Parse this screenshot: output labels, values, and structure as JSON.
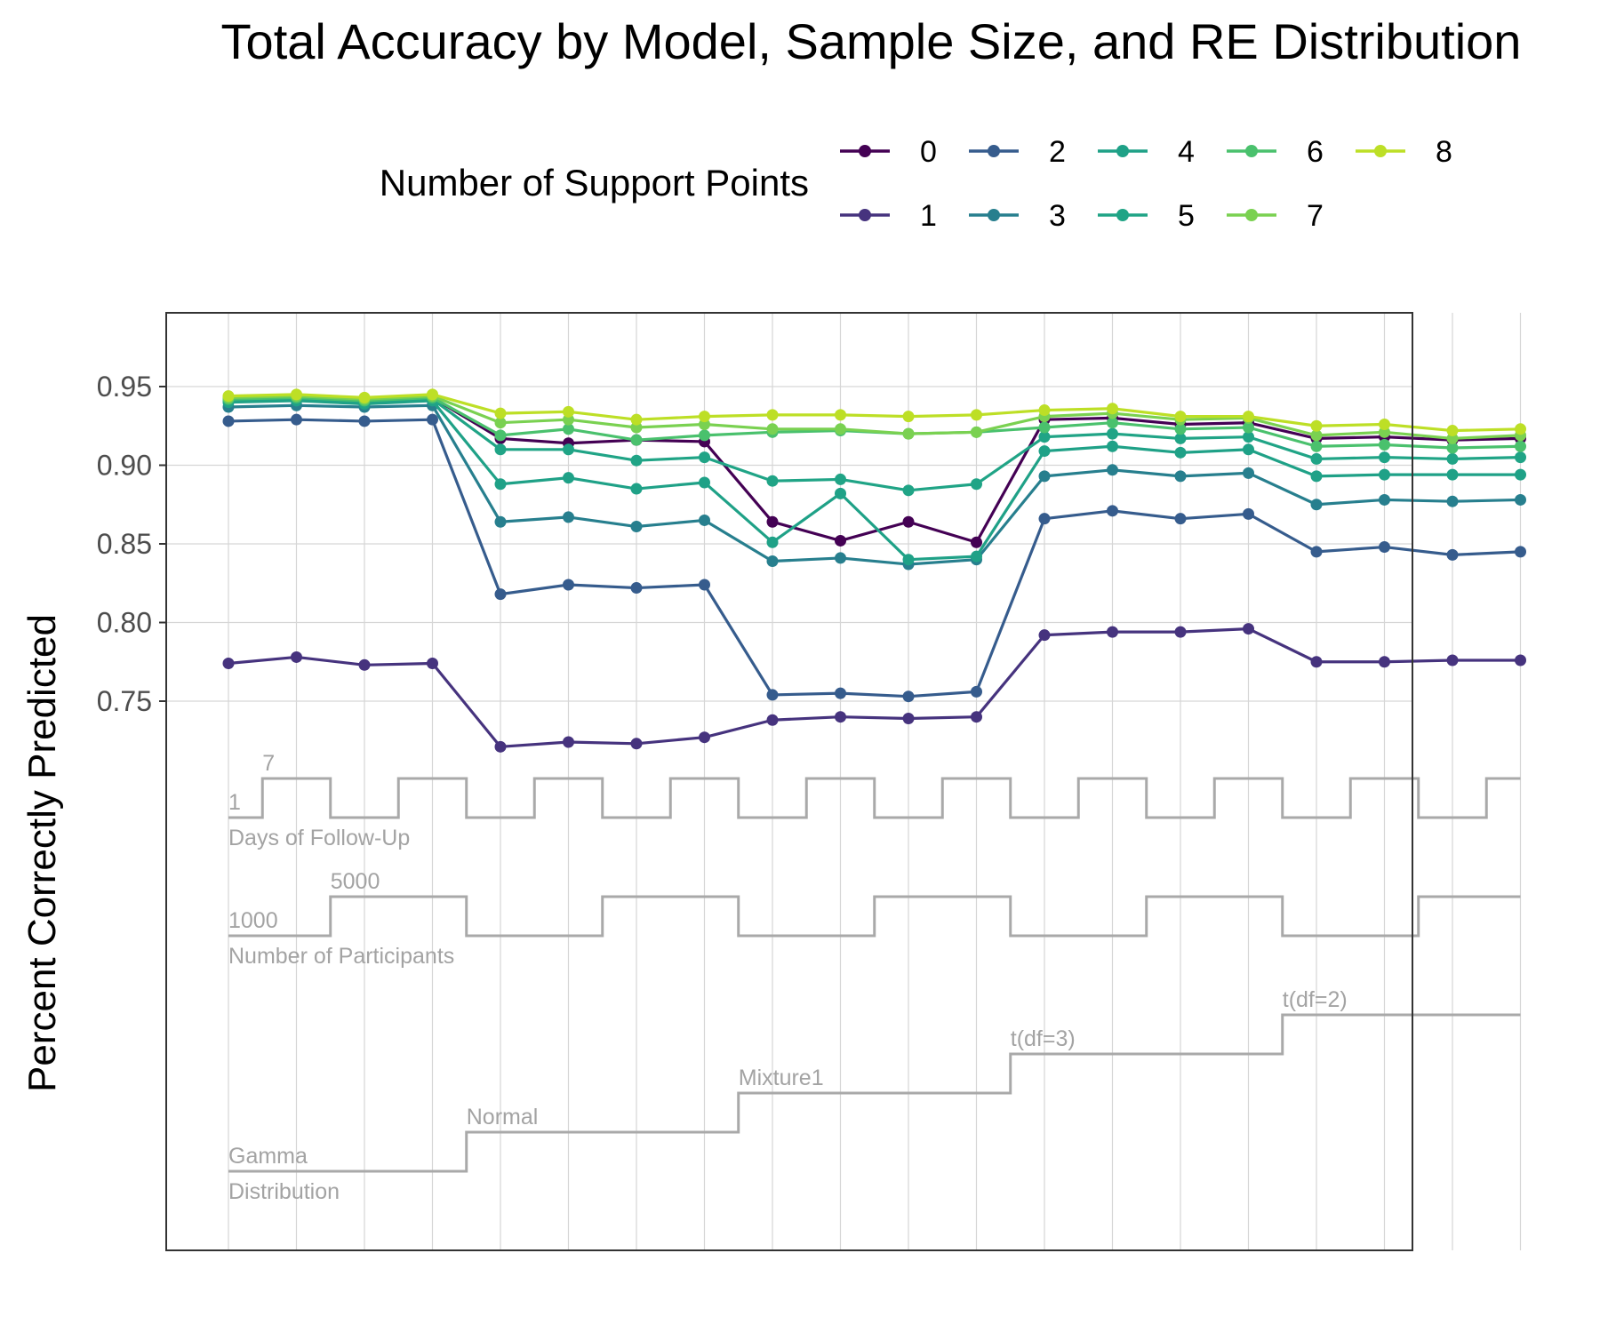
{
  "chart_data": {
    "type": "line",
    "title": "Total Accuracy by Model, Sample Size, and RE Distribution",
    "xlabel": "",
    "ylabel": "Percent Correctly Predicted",
    "legend_title": "Number of Support Points",
    "legend_position": "top",
    "grid": true,
    "yticks": [
      0.75,
      0.8,
      0.85,
      0.9,
      0.95
    ],
    "ytick_labels": [
      "0.75",
      "0.80",
      "0.85",
      "0.90",
      "0.95"
    ],
    "ylim": [
      0.5,
      0.995
    ],
    "x": [
      1,
      2,
      3,
      4,
      5,
      6,
      7,
      8,
      9,
      10,
      11,
      12,
      13,
      14,
      15,
      16,
      17,
      18,
      19,
      20
    ],
    "series": [
      {
        "name": "0",
        "color": "#440154",
        "values": [
          0.943,
          0.944,
          0.942,
          0.943,
          0.917,
          0.914,
          0.916,
          0.915,
          0.864,
          0.852,
          0.864,
          0.851,
          0.929,
          0.93,
          0.926,
          0.927,
          0.917,
          0.918,
          0.916,
          0.917
        ]
      },
      {
        "name": "1",
        "color": "#46337E",
        "values": [
          0.774,
          0.778,
          0.773,
          0.774,
          0.721,
          0.724,
          0.723,
          0.727,
          0.738,
          0.74,
          0.739,
          0.74,
          0.792,
          0.794,
          0.794,
          0.796,
          0.775,
          0.775,
          0.776,
          0.776
        ]
      },
      {
        "name": "2",
        "color": "#365C8D",
        "values": [
          0.928,
          0.929,
          0.928,
          0.929,
          0.818,
          0.824,
          0.822,
          0.824,
          0.754,
          0.755,
          0.753,
          0.756,
          0.866,
          0.871,
          0.866,
          0.869,
          0.845,
          0.848,
          0.843,
          0.845
        ]
      },
      {
        "name": "3",
        "color": "#277F8E",
        "values": [
          0.937,
          0.938,
          0.937,
          0.938,
          0.864,
          0.867,
          0.861,
          0.865,
          0.839,
          0.841,
          0.837,
          0.84,
          0.893,
          0.897,
          0.893,
          0.895,
          0.875,
          0.878,
          0.877,
          0.878
        ]
      },
      {
        "name": "4",
        "color": "#1FA187",
        "values": [
          0.94,
          0.941,
          0.939,
          0.941,
          0.888,
          0.892,
          0.885,
          0.889,
          0.851,
          0.882,
          0.84,
          0.842,
          0.909,
          0.912,
          0.908,
          0.91,
          0.893,
          0.894,
          0.894,
          0.894
        ]
      },
      {
        "name": "5",
        "color": "#20A486",
        "values": [
          0.941,
          0.942,
          0.94,
          0.942,
          0.91,
          0.91,
          0.903,
          0.905,
          0.89,
          0.891,
          0.884,
          0.888,
          0.918,
          0.92,
          0.917,
          0.918,
          0.904,
          0.905,
          0.904,
          0.905
        ]
      },
      {
        "name": "6",
        "color": "#4AC16D",
        "values": [
          0.942,
          0.943,
          0.941,
          0.943,
          0.919,
          0.923,
          0.916,
          0.919,
          0.921,
          0.922,
          0.92,
          0.921,
          0.924,
          0.927,
          0.923,
          0.924,
          0.912,
          0.913,
          0.911,
          0.912
        ]
      },
      {
        "name": "7",
        "color": "#7AD151",
        "values": [
          0.943,
          0.944,
          0.942,
          0.944,
          0.927,
          0.929,
          0.924,
          0.926,
          0.923,
          0.923,
          0.92,
          0.921,
          0.931,
          0.933,
          0.929,
          0.93,
          0.919,
          0.921,
          0.917,
          0.919
        ]
      },
      {
        "name": "8",
        "color": "#BDDF26",
        "values": [
          0.944,
          0.945,
          0.943,
          0.945,
          0.933,
          0.934,
          0.929,
          0.931,
          0.932,
          0.932,
          0.931,
          0.932,
          0.935,
          0.936,
          0.931,
          0.931,
          0.925,
          0.926,
          0.922,
          0.923
        ]
      }
    ],
    "step_indicators": [
      {
        "name": "Days of Follow-Up",
        "low_label": "1",
        "high_label": "7",
        "values": [
          0,
          1,
          0,
          1,
          0,
          1,
          0,
          1,
          0,
          1,
          0,
          1,
          0,
          1,
          0,
          1,
          0,
          1,
          0,
          1
        ]
      },
      {
        "name": "Number of Participants",
        "low_label": "1000",
        "high_label": "5000",
        "values": [
          0,
          0,
          1,
          1,
          0,
          0,
          1,
          1,
          0,
          0,
          1,
          1,
          0,
          0,
          1,
          1,
          0,
          0,
          1,
          1
        ]
      },
      {
        "name": "Distribution",
        "levels": [
          "Gamma",
          "Normal",
          "Mixture1",
          "t(df=3)",
          "t(df=2)"
        ],
        "values": [
          0,
          0,
          0,
          0,
          1,
          1,
          1,
          1,
          2,
          2,
          2,
          2,
          3,
          3,
          3,
          3,
          4,
          4,
          4,
          4
        ]
      }
    ]
  }
}
